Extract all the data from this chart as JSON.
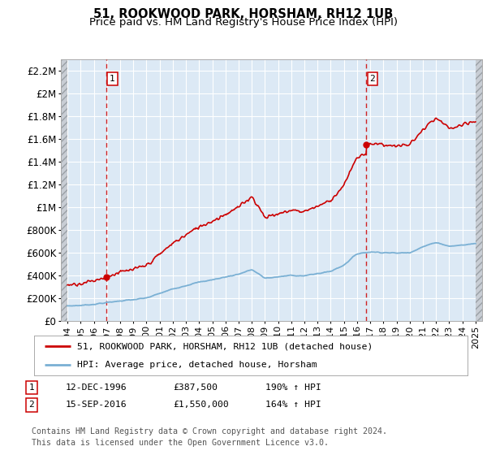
{
  "title": "51, ROOKWOOD PARK, HORSHAM, RH12 1UB",
  "subtitle": "Price paid vs. HM Land Registry's House Price Index (HPI)",
  "ylim": [
    0,
    2300000
  ],
  "yticks": [
    0,
    200000,
    400000,
    600000,
    800000,
    1000000,
    1200000,
    1400000,
    1600000,
    1800000,
    2000000,
    2200000
  ],
  "ytick_labels": [
    "£0",
    "£200K",
    "£400K",
    "£600K",
    "£800K",
    "£1M",
    "£1.2M",
    "£1.4M",
    "£1.6M",
    "£1.8M",
    "£2M",
    "£2.2M"
  ],
  "xlim_start": 1993.5,
  "xlim_end": 2025.5,
  "sale1_x": 1996.95,
  "sale1_y": 387500,
  "sale2_x": 2016.71,
  "sale2_y": 1550000,
  "red_line_color": "#cc0000",
  "blue_line_color": "#7ab0d4",
  "background_color": "#dce9f5",
  "hatch_color": "#c8cdd4",
  "grid_color": "#ffffff",
  "legend_label1": "51, ROOKWOOD PARK, HORSHAM, RH12 1UB (detached house)",
  "legend_label2": "HPI: Average price, detached house, Horsham",
  "footnote": "Contains HM Land Registry data © Crown copyright and database right 2024.\nThis data is licensed under the Open Government Licence v3.0.",
  "xtick_years": [
    1994,
    1995,
    1996,
    1997,
    1998,
    1999,
    2000,
    2001,
    2002,
    2003,
    2004,
    2005,
    2006,
    2007,
    2008,
    2009,
    2010,
    2011,
    2012,
    2013,
    2014,
    2015,
    2016,
    2017,
    2018,
    2019,
    2020,
    2021,
    2022,
    2023,
    2024,
    2025
  ]
}
